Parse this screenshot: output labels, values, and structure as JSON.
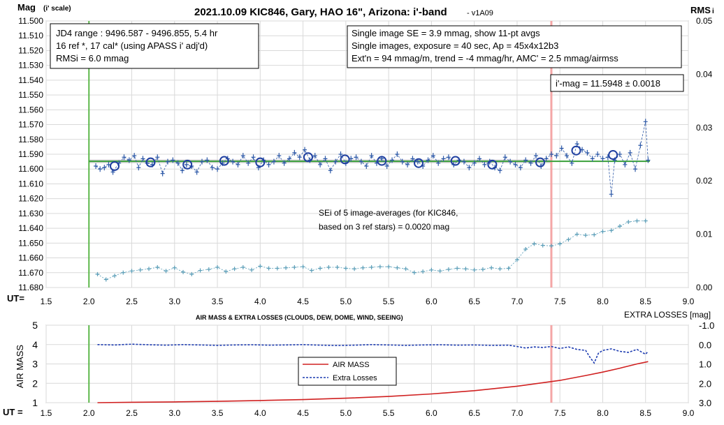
{
  "colors": {
    "accent_green": "#5cb84a",
    "transit_pink": "#f4a6a6",
    "mag_blue": "#2f5aa8",
    "circle_blue": "#1f3fa0",
    "rms_teal": "#5b9eb8",
    "airmass_red": "#d02020",
    "losses_blue": "#1c3bb0",
    "fit_green": "#3aa03a"
  },
  "chart_data": [
    {
      "type": "scatter",
      "title": "2021.10.09 KIC846, Gary, HAO 16\", Arizona: i'-band",
      "title_suffix": "- v1A09",
      "ylabel": "Mag",
      "ylabel_note": "(i' scale)",
      "y2label": "RMS",
      "y2label_suffix": "i",
      "xlabel": "UT=",
      "xlim": [
        1.5,
        9.0
      ],
      "ylim": [
        11.5,
        11.68
      ],
      "y2lim": [
        0.0,
        0.05
      ],
      "x_ticks": [
        "1.5",
        "2.0",
        "2.5",
        "3.0",
        "3.5",
        "4.0",
        "4.5",
        "5.0",
        "5.5",
        "6.0",
        "6.5",
        "7.0",
        "7.5",
        "8.0",
        "8.5",
        "9.0"
      ],
      "y_ticks": [
        "11.500",
        "11.510",
        "11.520",
        "11.530",
        "11.540",
        "11.550",
        "11.560",
        "11.570",
        "11.580",
        "11.590",
        "11.600",
        "11.610",
        "11.620",
        "11.630",
        "11.640",
        "11.650",
        "11.660",
        "11.670",
        "11.680"
      ],
      "y2_ticks": [
        "0.05",
        "0.04",
        "0.03",
        "0.02",
        "0.01",
        "0.00"
      ],
      "y2_tick_values": [
        0.05,
        0.04,
        0.03,
        0.02,
        0.01,
        0.0
      ],
      "y_reversed": true,
      "vline_start": 2.0,
      "vline_end": 7.4,
      "fit_level": 11.5948,
      "mag_series_x": [
        2.08,
        2.13,
        2.18,
        2.23,
        2.28,
        2.35,
        2.41,
        2.47,
        2.53,
        2.58,
        2.63,
        2.68,
        2.74,
        2.8,
        2.86,
        2.92,
        2.98,
        3.04,
        3.09,
        3.14,
        3.2,
        3.26,
        3.32,
        3.38,
        3.44,
        3.5,
        3.56,
        3.62,
        3.68,
        3.74,
        3.8,
        3.86,
        3.92,
        3.98,
        4.04,
        4.1,
        4.16,
        4.22,
        4.28,
        4.34,
        4.4,
        4.46,
        4.52,
        4.58,
        4.64,
        4.7,
        4.76,
        4.82,
        4.88,
        4.94,
        5.0,
        5.06,
        5.12,
        5.18,
        5.24,
        5.3,
        5.36,
        5.42,
        5.48,
        5.54,
        5.6,
        5.66,
        5.72,
        5.78,
        5.84,
        5.9,
        5.96,
        6.02,
        6.08,
        6.14,
        6.2,
        6.26,
        6.32,
        6.38,
        6.44,
        6.5,
        6.56,
        6.62,
        6.68,
        6.74,
        6.8,
        6.86,
        6.92,
        6.98,
        7.04,
        7.1,
        7.16,
        7.22,
        7.28,
        7.34,
        7.4,
        7.46,
        7.52,
        7.58,
        7.64,
        7.7,
        7.76,
        7.82,
        7.88,
        7.94,
        8.0,
        8.06,
        8.1,
        8.14,
        8.2,
        8.26,
        8.32,
        8.38,
        8.44,
        8.5,
        8.53
      ],
      "mag_series_y": [
        11.598,
        11.6,
        11.599,
        11.597,
        11.602,
        11.596,
        11.592,
        11.594,
        11.591,
        11.599,
        11.593,
        11.596,
        11.597,
        11.592,
        11.603,
        11.595,
        11.594,
        11.596,
        11.601,
        11.597,
        11.598,
        11.602,
        11.595,
        11.594,
        11.599,
        11.6,
        11.596,
        11.593,
        11.595,
        11.597,
        11.591,
        11.596,
        11.592,
        11.599,
        11.594,
        11.597,
        11.595,
        11.591,
        11.596,
        11.593,
        11.589,
        11.592,
        11.587,
        11.594,
        11.591,
        11.597,
        11.593,
        11.601,
        11.595,
        11.59,
        11.596,
        11.593,
        11.592,
        11.595,
        11.598,
        11.591,
        11.596,
        11.593,
        11.598,
        11.594,
        11.59,
        11.595,
        11.597,
        11.593,
        11.595,
        11.598,
        11.594,
        11.591,
        11.596,
        11.593,
        11.592,
        11.597,
        11.594,
        11.595,
        11.599,
        11.596,
        11.593,
        11.597,
        11.595,
        11.599,
        11.601,
        11.592,
        11.595,
        11.597,
        11.599,
        11.594,
        11.596,
        11.591,
        11.598,
        11.593,
        11.59,
        11.591,
        11.586,
        11.591,
        11.596,
        11.583,
        11.587,
        11.589,
        11.593,
        11.59,
        11.593,
        11.592,
        11.617,
        11.594,
        11.59,
        11.597,
        11.589,
        11.6,
        11.584,
        11.568,
        11.594
      ],
      "avg_series_x": [
        2.3,
        2.72,
        3.15,
        3.58,
        4.0,
        4.56,
        4.99,
        5.42,
        5.85,
        6.28,
        6.71,
        7.27,
        7.69,
        8.12
      ],
      "avg_series_y": [
        11.598,
        11.5955,
        11.597,
        11.5945,
        11.5955,
        11.592,
        11.5935,
        11.5945,
        11.596,
        11.5945,
        11.597,
        11.5955,
        11.5875,
        11.5905
      ],
      "rms_series_x": [
        2.1,
        2.2,
        2.3,
        2.4,
        2.5,
        2.6,
        2.7,
        2.8,
        2.9,
        3.0,
        3.1,
        3.2,
        3.3,
        3.4,
        3.5,
        3.6,
        3.7,
        3.8,
        3.9,
        4.0,
        4.1,
        4.2,
        4.3,
        4.4,
        4.5,
        4.6,
        4.7,
        4.8,
        4.9,
        5.0,
        5.1,
        5.2,
        5.3,
        5.4,
        5.5,
        5.6,
        5.7,
        5.8,
        5.9,
        6.0,
        6.1,
        6.2,
        6.3,
        6.4,
        6.5,
        6.6,
        6.7,
        6.8,
        6.9,
        7.0,
        7.1,
        7.2,
        7.3,
        7.4,
        7.5,
        7.6,
        7.7,
        7.8,
        7.9,
        8.0,
        8.1,
        8.2,
        8.3,
        8.4,
        8.5
      ],
      "rms_series_y": [
        0.0025,
        0.0015,
        0.0022,
        0.0028,
        0.0031,
        0.0033,
        0.0035,
        0.0038,
        0.0031,
        0.0037,
        0.0029,
        0.0025,
        0.0032,
        0.0034,
        0.0038,
        0.003,
        0.0035,
        0.0038,
        0.0033,
        0.004,
        0.0036,
        0.0036,
        0.0037,
        0.0038,
        0.0039,
        0.0032,
        0.0036,
        0.0038,
        0.0038,
        0.0036,
        0.0035,
        0.0037,
        0.0038,
        0.0039,
        0.0039,
        0.0037,
        0.0035,
        0.0028,
        0.003,
        0.0033,
        0.0031,
        0.0034,
        0.0036,
        0.0035,
        0.0033,
        0.0034,
        0.0037,
        0.0035,
        0.0036,
        0.0052,
        0.0072,
        0.0082,
        0.0079,
        0.0078,
        0.0082,
        0.009,
        0.01,
        0.0098,
        0.0099,
        0.0105,
        0.0107,
        0.0115,
        0.0123,
        0.0125,
        0.0125
      ],
      "legend": "none",
      "annotations": {
        "box_left": [
          "JD4 range : 9496.587 - 9496.855, 5.4  hr",
          "16 ref *, 17 cal* (using APASS i' adj'd)",
          "RMSi = 6.0 mmag"
        ],
        "box_right": [
          "Single image SE = 3.9 mmag, show 11-pt avgs",
          "Single images, exposure = 40 sec, Ap = 45x4x12b3",
          "Ext'n = 94 mmag/m, trend = -4 mmag/hr, AMC' = 2.5 mmag/airmss"
        ],
        "mag_box": "i'-mag = 11.5948 ± 0.0018",
        "sei_note": [
          "SEi of 5 image-averages (for KIC846,",
          "based on 3 ref stars) = 0.0020 mag"
        ]
      }
    },
    {
      "type": "line",
      "title": "AIR MASS & EXTRA LOSSES (CLOUDS, DEW, DOME, WIND, SEEING)",
      "ylabel": "AIR MASS",
      "y2label": "EXTRA LOSSES [mag]",
      "xlabel": "UT =",
      "xlim": [
        1.5,
        9.0
      ],
      "ylim": [
        1,
        5
      ],
      "y2lim": [
        -1.0,
        3.0
      ],
      "x_ticks": [
        "1.5",
        "2.0",
        "2.5",
        "3.0",
        "3.5",
        "4.0",
        "4.5",
        "5.0",
        "5.5",
        "6.0",
        "6.5",
        "7.0",
        "7.5",
        "8.0",
        "8.5",
        "9.0"
      ],
      "y_ticks": [
        "5",
        "4",
        "3",
        "2",
        "1"
      ],
      "y2_ticks": [
        "-1.0",
        "0.0",
        "1.0",
        "2.0",
        "3.0"
      ],
      "vline_start": 2.0,
      "vline_end": 7.4,
      "legend": "center",
      "series": [
        {
          "name": "AIR MASS",
          "x": [
            2.1,
            2.5,
            3.0,
            3.5,
            4.0,
            4.5,
            5.0,
            5.5,
            6.0,
            6.5,
            7.0,
            7.5,
            7.8,
            8.0,
            8.2,
            8.4,
            8.53
          ],
          "values": [
            1.0,
            1.02,
            1.04,
            1.07,
            1.11,
            1.16,
            1.23,
            1.32,
            1.45,
            1.62,
            1.85,
            2.15,
            2.4,
            2.58,
            2.78,
            3.0,
            3.12
          ]
        },
        {
          "name": "Extra Losses",
          "x": [
            2.1,
            2.3,
            2.5,
            2.7,
            2.9,
            3.1,
            3.3,
            3.5,
            3.7,
            3.9,
            4.1,
            4.3,
            4.5,
            4.7,
            4.9,
            5.1,
            5.3,
            5.5,
            5.7,
            5.9,
            6.1,
            6.3,
            6.5,
            6.7,
            6.9,
            7.0,
            7.1,
            7.2,
            7.3,
            7.4,
            7.5,
            7.6,
            7.7,
            7.8,
            7.85,
            7.9,
            7.95,
            8.0,
            8.1,
            8.2,
            8.3,
            8.4,
            8.5,
            8.53
          ],
          "values": [
            0.0,
            0.02,
            -0.02,
            0.01,
            0.03,
            0.0,
            0.02,
            0.04,
            0.02,
            0.01,
            0.03,
            0.02,
            0.0,
            0.03,
            0.05,
            0.03,
            0.0,
            0.02,
            0.04,
            0.02,
            0.01,
            0.03,
            0.02,
            0.04,
            0.03,
            0.1,
            0.18,
            0.12,
            0.15,
            0.1,
            0.2,
            0.12,
            0.25,
            0.3,
            0.65,
            0.95,
            0.45,
            0.3,
            0.22,
            0.35,
            0.4,
            0.25,
            0.5,
            0.35
          ]
        }
      ]
    }
  ]
}
